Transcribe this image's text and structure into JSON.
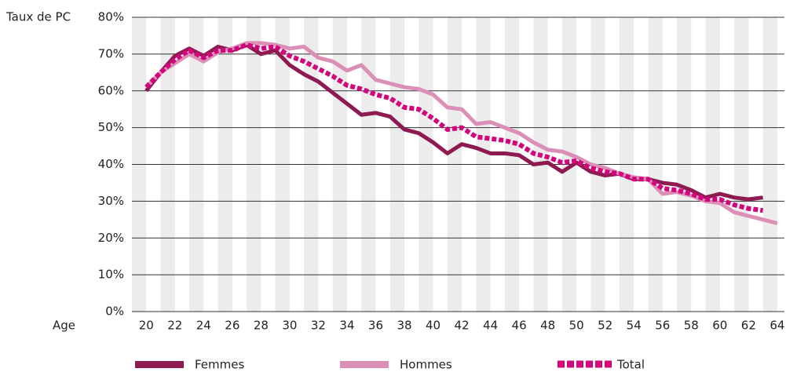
{
  "chart_data": {
    "type": "line",
    "y_axis_label": "Taux de PC",
    "x_axis_label": "Age",
    "x": [
      20,
      21,
      22,
      23,
      24,
      25,
      26,
      27,
      28,
      29,
      30,
      31,
      32,
      33,
      34,
      35,
      36,
      37,
      38,
      39,
      40,
      41,
      42,
      43,
      44,
      45,
      46,
      47,
      48,
      49,
      50,
      51,
      52,
      53,
      54,
      55,
      56,
      57,
      58,
      59,
      60,
      61,
      62,
      63,
      64
    ],
    "series": [
      {
        "name": "Femmes",
        "color": "#8e1a52",
        "dashed": false,
        "values": [
          60,
          65,
          69.5,
          71.5,
          69.5,
          72,
          71,
          72.5,
          70,
          71,
          67,
          64.5,
          62.5,
          59.5,
          56.5,
          53.5,
          54,
          53,
          49.5,
          48.5,
          46,
          43,
          45.5,
          44.5,
          43,
          43,
          42.5,
          40,
          40.5,
          38,
          40.5,
          38,
          37,
          37.5,
          36,
          36,
          35,
          34.5,
          33,
          31,
          32,
          31,
          30.5,
          31,
          null
        ]
      },
      {
        "name": "Hommes",
        "color": "#dc8fb6",
        "dashed": false,
        "values": [
          61,
          65,
          67.5,
          70,
          68,
          70.5,
          71.5,
          73,
          73,
          72.5,
          71.5,
          72,
          69,
          68,
          65.5,
          67,
          63,
          62,
          61,
          60.5,
          59,
          55.5,
          55,
          51,
          51.5,
          50,
          48.5,
          46,
          44,
          43.5,
          42,
          40,
          39,
          37.5,
          36.5,
          36,
          32,
          32.5,
          31.5,
          30,
          29.5,
          27,
          26,
          25,
          24
        ]
      },
      {
        "name": "Total",
        "color": "#d4047c",
        "dashed": true,
        "values": [
          61,
          65,
          68.5,
          71,
          69,
          71,
          71,
          72.5,
          71.5,
          72,
          69.5,
          68,
          66,
          64,
          61.5,
          60.5,
          59,
          58,
          55.5,
          55,
          52.5,
          49.5,
          50,
          47.5,
          47,
          46.5,
          45.5,
          43,
          42,
          40.5,
          41,
          39,
          38,
          37.5,
          36,
          36,
          33.5,
          33,
          32,
          30.5,
          30.5,
          29,
          28,
          27.5,
          null
        ]
      }
    ],
    "xlim": [
      19,
      64.5
    ],
    "xticks": [
      20,
      22,
      24,
      26,
      28,
      30,
      32,
      34,
      36,
      38,
      40,
      42,
      44,
      46,
      48,
      50,
      52,
      54,
      56,
      58,
      60,
      62,
      64
    ],
    "ylim": [
      0,
      80
    ],
    "yticks": [
      {
        "value": 0,
        "label": "0%"
      },
      {
        "value": 10,
        "label": "10%"
      },
      {
        "value": 20,
        "label": "20%"
      },
      {
        "value": 30,
        "label": "30%"
      },
      {
        "value": 40,
        "label": "40%"
      },
      {
        "value": 50,
        "label": "50%"
      },
      {
        "value": 60,
        "label": "60%"
      },
      {
        "value": 70,
        "label": "70%"
      },
      {
        "value": 80,
        "label": "80%"
      }
    ],
    "grid": true,
    "legend": "bottom"
  }
}
